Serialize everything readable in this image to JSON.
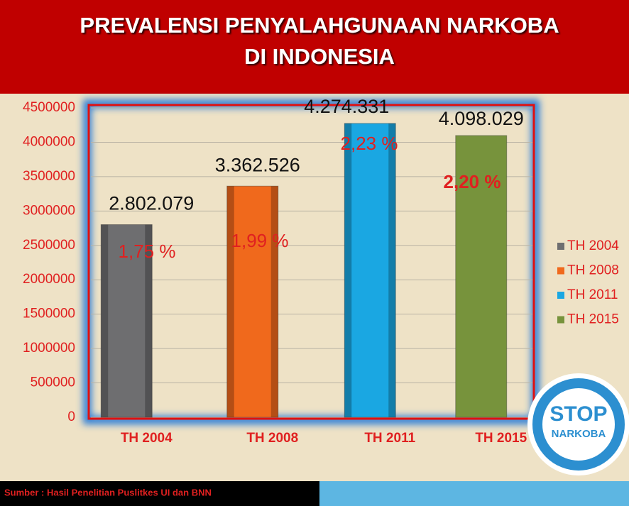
{
  "chart_data": {
    "type": "bar",
    "title": [
      "PREVALENSI PENYALAHGUNAAN NARKOBA",
      "DI INDONESIA"
    ],
    "categories": [
      "TH 2004",
      "TH 2008",
      "TH 2011",
      "TH 2015"
    ],
    "values": [
      2802079,
      3362526,
      4274331,
      4098029
    ],
    "value_labels": [
      "2.802.079",
      "3.362.526",
      "4.274.331",
      "4.098.029"
    ],
    "annotations": [
      "1,75 %",
      "1,99 %",
      "2,23 %",
      "2,20 %"
    ],
    "colors": [
      "#6e6e70",
      "#f0691c",
      "#1aa7e2",
      "#77933c"
    ],
    "ylim": [
      0,
      4500000
    ],
    "yticks": [
      0,
      500000,
      1000000,
      1500000,
      2000000,
      2500000,
      3000000,
      3500000,
      4000000,
      4500000
    ],
    "grid": true,
    "legend": "right",
    "source": "Sumber : Hasil Penelitian Puslitkes UI dan BNN",
    "logo": [
      "STOP",
      "NARKOBA"
    ]
  }
}
